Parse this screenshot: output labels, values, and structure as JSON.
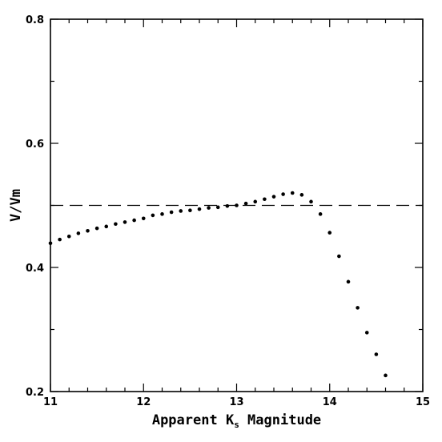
{
  "chart_data": {
    "type": "scatter",
    "xlabel": "Apparent K",
    "xlabel_subscript": "s",
    "xlabel_suffix": " Magnitude",
    "ylabel": "V/Vm",
    "xlim": [
      11,
      15
    ],
    "ylim": [
      0.2,
      0.8
    ],
    "x_ticks": [
      "11",
      "12",
      "13",
      "14",
      "15"
    ],
    "y_ticks": [
      "0.2",
      "0.4",
      "0.6",
      "0.8"
    ],
    "reference_line": {
      "y": 0.5,
      "style": "dashed"
    },
    "series": [
      {
        "points": [
          [
            11.0,
            0.439
          ],
          [
            11.1,
            0.445
          ],
          [
            11.2,
            0.45
          ],
          [
            11.3,
            0.455
          ],
          [
            11.4,
            0.459
          ],
          [
            11.5,
            0.463
          ],
          [
            11.6,
            0.466
          ],
          [
            11.7,
            0.47
          ],
          [
            11.8,
            0.473
          ],
          [
            11.9,
            0.476
          ],
          [
            12.0,
            0.479
          ],
          [
            12.1,
            0.484
          ],
          [
            12.2,
            0.486
          ],
          [
            12.3,
            0.489
          ],
          [
            12.4,
            0.491
          ],
          [
            12.5,
            0.492
          ],
          [
            12.6,
            0.494
          ],
          [
            12.7,
            0.496
          ],
          [
            12.8,
            0.497
          ],
          [
            12.9,
            0.499
          ],
          [
            13.0,
            0.5
          ],
          [
            13.1,
            0.503
          ],
          [
            13.2,
            0.506
          ],
          [
            13.3,
            0.51
          ],
          [
            13.4,
            0.514
          ],
          [
            13.5,
            0.518
          ],
          [
            13.6,
            0.52
          ],
          [
            13.7,
            0.517
          ],
          [
            13.8,
            0.506
          ],
          [
            13.9,
            0.486
          ],
          [
            14.0,
            0.456
          ],
          [
            14.1,
            0.418
          ],
          [
            14.2,
            0.377
          ],
          [
            14.3,
            0.335
          ],
          [
            14.4,
            0.295
          ],
          [
            14.5,
            0.26
          ],
          [
            14.6,
            0.226
          ]
        ]
      }
    ]
  }
}
